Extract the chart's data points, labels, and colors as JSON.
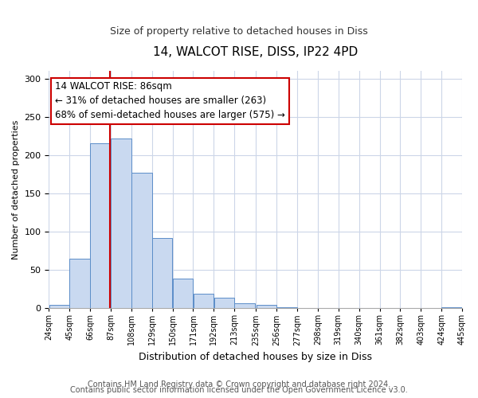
{
  "title": "14, WALCOT RISE, DISS, IP22 4PD",
  "subtitle": "Size of property relative to detached houses in Diss",
  "xlabel": "Distribution of detached houses by size in Diss",
  "ylabel": "Number of detached properties",
  "bar_edges": [
    24,
    45,
    66,
    87,
    108,
    129,
    150,
    171,
    192,
    213,
    235,
    256,
    277,
    298,
    319,
    340,
    361,
    382,
    403,
    424,
    445
  ],
  "bar_heights": [
    4,
    65,
    215,
    222,
    177,
    92,
    39,
    19,
    14,
    6,
    4,
    1,
    0,
    0,
    0,
    0,
    0,
    0,
    0,
    1
  ],
  "bar_color": "#c9d9f0",
  "bar_edge_color": "#5b8dc8",
  "property_line_x": 86,
  "property_line_color": "#cc0000",
  "annotation_text": "14 WALCOT RISE: 86sqm\n← 31% of detached houses are smaller (263)\n68% of semi-detached houses are larger (575) →",
  "ylim": [
    0,
    310
  ],
  "xlim": [
    24,
    445
  ],
  "tick_labels": [
    "24sqm",
    "45sqm",
    "66sqm",
    "87sqm",
    "108sqm",
    "129sqm",
    "150sqm",
    "171sqm",
    "192sqm",
    "213sqm",
    "235sqm",
    "256sqm",
    "277sqm",
    "298sqm",
    "319sqm",
    "340sqm",
    "361sqm",
    "382sqm",
    "403sqm",
    "424sqm",
    "445sqm"
  ],
  "yticks": [
    0,
    50,
    100,
    150,
    200,
    250,
    300
  ],
  "footer_line1": "Contains HM Land Registry data © Crown copyright and database right 2024.",
  "footer_line2": "Contains public sector information licensed under the Open Government Licence v3.0.",
  "background_color": "#ffffff",
  "grid_color": "#ccd6e8",
  "title_fontsize": 11,
  "subtitle_fontsize": 9,
  "footer_fontsize": 7,
  "ylabel_fontsize": 8,
  "xlabel_fontsize": 9
}
